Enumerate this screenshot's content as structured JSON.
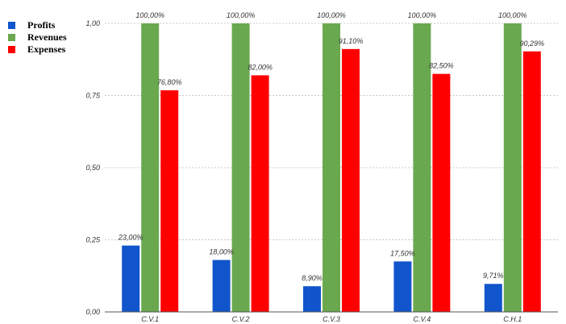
{
  "chart_data": {
    "type": "bar",
    "categories": [
      "C.V.1",
      "C.V.2",
      "C.V.3",
      "C.V.4",
      "C.H.1"
    ],
    "series": [
      {
        "name": "Profits",
        "color": "#1155cc",
        "values": [
          0.23,
          0.18,
          0.089,
          0.175,
          0.0971
        ],
        "labels": [
          "23,00%",
          "18,00%",
          "8,90%",
          "17,50%",
          "9,71%"
        ]
      },
      {
        "name": "Revenues",
        "color": "#6aa84f",
        "values": [
          1.0,
          1.0,
          1.0,
          1.0,
          1.0
        ],
        "labels": [
          "100,00%",
          "100,00%",
          "100,00%",
          "100,00%",
          "100,00%"
        ]
      },
      {
        "name": "Expenses",
        "color": "#ff0000",
        "values": [
          0.768,
          0.82,
          0.911,
          0.825,
          0.9029
        ],
        "labels": [
          "76,80%",
          "82,00%",
          "91,10%",
          "82,50%",
          "90,29%"
        ]
      }
    ],
    "yticks": [
      "0,00",
      "0,25",
      "0,50",
      "0,75",
      "1,00"
    ],
    "ylim": [
      0,
      1.0
    ],
    "grid": true,
    "legend_position": "top-left"
  }
}
